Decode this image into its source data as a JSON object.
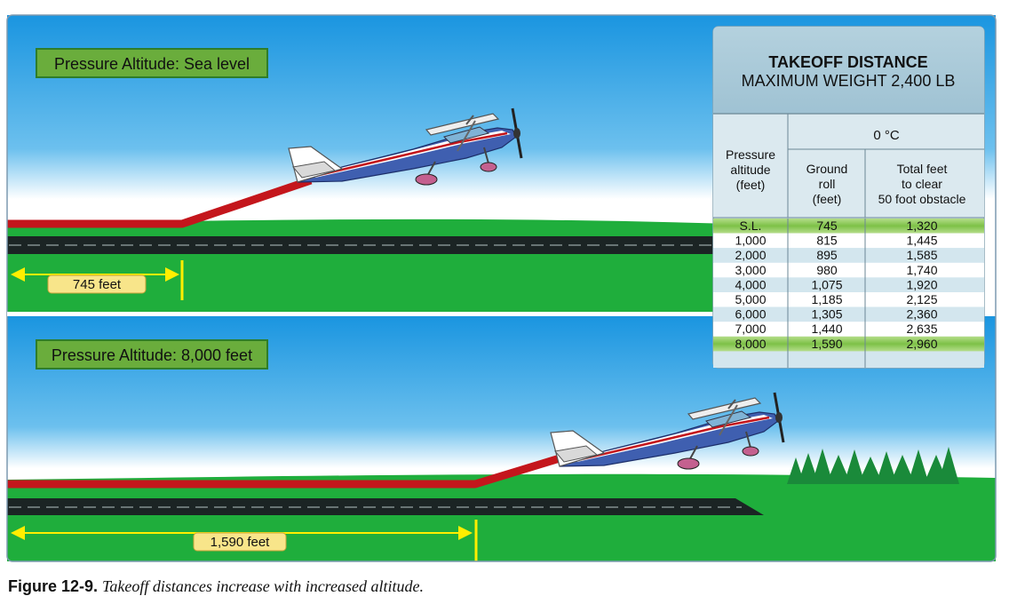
{
  "scene_top": {
    "altitude_label": "Pressure Altitude: Sea level",
    "distance_label": "745 feet"
  },
  "scene_bottom": {
    "altitude_label": "Pressure Altitude: 8,000 feet",
    "distance_label": "1,590 feet"
  },
  "table": {
    "title": "TAKEOFF DISTANCE",
    "subtitle": "MAXIMUM WEIGHT 2,400 LB",
    "temperature": "0 °C",
    "col_altitude": [
      "Pressure",
      "altitude",
      "(feet)"
    ],
    "col_ground_roll": [
      "Ground",
      "roll",
      "(feet)"
    ],
    "col_total": [
      "Total feet",
      "to clear",
      "50 foot obstacle"
    ],
    "rows": [
      {
        "altitude": "S.L.",
        "ground_roll": "745",
        "total": "1,320",
        "highlight": true
      },
      {
        "altitude": "1,000",
        "ground_roll": "815",
        "total": "1,445",
        "highlight": false
      },
      {
        "altitude": "2,000",
        "ground_roll": "895",
        "total": "1,585",
        "highlight": false
      },
      {
        "altitude": "3,000",
        "ground_roll": "980",
        "total": "1,740",
        "highlight": false
      },
      {
        "altitude": "4,000",
        "ground_roll": "1,075",
        "total": "1,920",
        "highlight": false
      },
      {
        "altitude": "5,000",
        "ground_roll": "1,185",
        "total": "2,125",
        "highlight": false
      },
      {
        "altitude": "6,000",
        "ground_roll": "1,305",
        "total": "2,360",
        "highlight": false
      },
      {
        "altitude": "7,000",
        "ground_roll": "1,440",
        "total": "2,635",
        "highlight": false
      },
      {
        "altitude": "8,000",
        "ground_roll": "1,590",
        "total": "2,960",
        "highlight": true
      }
    ]
  },
  "caption": {
    "figure": "Figure 12-9.",
    "text": "Takeoff distances increase with increased altitude."
  },
  "colors": {
    "sky_top": "#1a95e0",
    "sky_bottom": "#ffffff",
    "grass": "#1fae3c",
    "runway": "#1b2424",
    "flight_path": "#c4161c",
    "label_box": "#6aad3c",
    "distance_tag": "#f8e58a",
    "marker": "#ffee00",
    "table_header": "#a4c7d8",
    "table_highlight": "#8fcc57"
  }
}
